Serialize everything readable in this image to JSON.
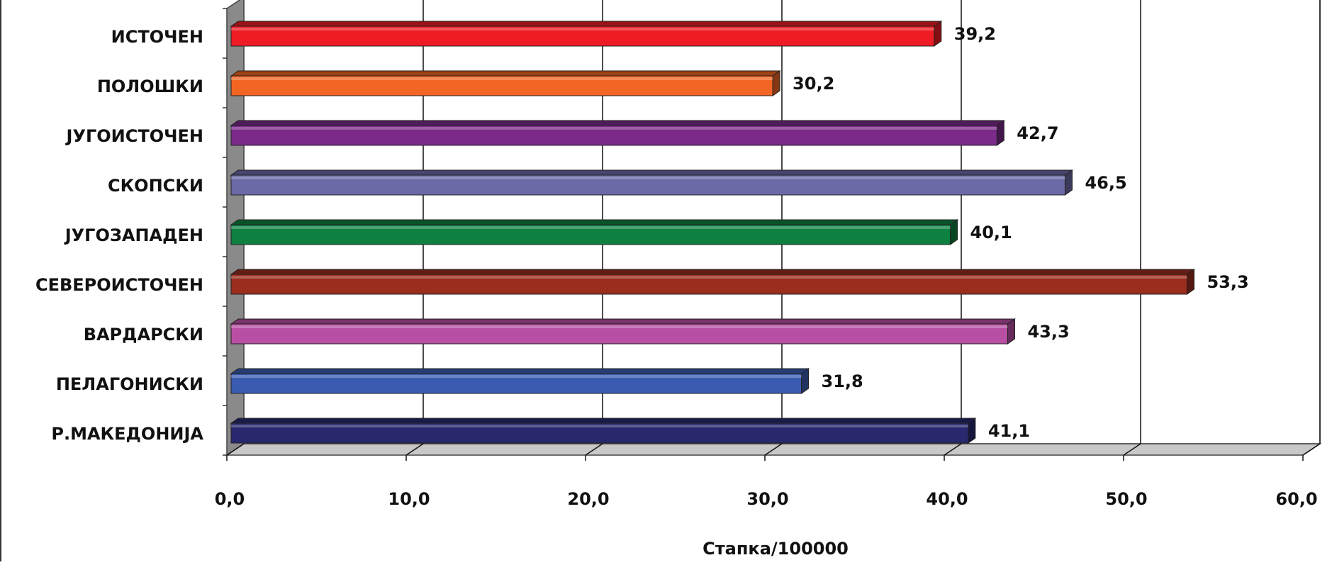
{
  "chart_data": {
    "type": "bar",
    "orientation": "horizontal",
    "categories": [
      "ИСТОЧЕН",
      "ПОЛОШКИ",
      "ЈУГОИСТОЧЕН",
      "СКОПСКИ",
      "ЈУГОЗАПАДЕН",
      "СЕВЕРОИСТОЧЕН",
      "ВАРДАРСКИ",
      "ПЕЛАГОНИСКИ",
      "Р.МАКЕДОНИЈА"
    ],
    "values": [
      39.2,
      30.2,
      42.7,
      46.5,
      40.1,
      53.3,
      43.3,
      31.8,
      41.1
    ],
    "value_labels": [
      "39,2",
      "30,2",
      "42,7",
      "46,5",
      "40,1",
      "53,3",
      "43,3",
      "31,8",
      "41,1"
    ],
    "colors": [
      "#ee1c24",
      "#f26522",
      "#7b2a8a",
      "#6b6aa6",
      "#0e8040",
      "#9a2d1e",
      "#b94fa4",
      "#3a5cb0",
      "#27286e"
    ],
    "xlim": [
      0,
      60
    ],
    "xticks": [
      0,
      10,
      20,
      30,
      40,
      50,
      60
    ],
    "xtick_labels": [
      "0,0",
      "10,0",
      "20,0",
      "30,0",
      "40,0",
      "50,0",
      "60,0"
    ],
    "xlabel": "Стапка/100000",
    "ylabel": "",
    "title": "",
    "grid": "vertical",
    "style": "3d"
  }
}
